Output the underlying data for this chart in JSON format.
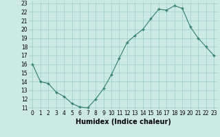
{
  "x": [
    0,
    1,
    2,
    3,
    4,
    5,
    6,
    7,
    8,
    9,
    10,
    11,
    12,
    13,
    14,
    15,
    16,
    17,
    18,
    19,
    20,
    21,
    22,
    23
  ],
  "y": [
    16,
    14,
    13.8,
    12.8,
    12.3,
    11.5,
    11.1,
    11.0,
    12.0,
    13.2,
    14.8,
    16.7,
    18.5,
    19.3,
    20.0,
    21.2,
    22.3,
    22.2,
    22.7,
    22.4,
    20.3,
    19.0,
    18.0,
    17.0
  ],
  "xlabel": "Humidex (Indice chaleur)",
  "xlim": [
    -0.5,
    23.5
  ],
  "ylim": [
    10.8,
    23.2
  ],
  "yticks": [
    11,
    12,
    13,
    14,
    15,
    16,
    17,
    18,
    19,
    20,
    21,
    22,
    23
  ],
  "xticks": [
    0,
    1,
    2,
    3,
    4,
    5,
    6,
    7,
    8,
    9,
    10,
    11,
    12,
    13,
    14,
    15,
    16,
    17,
    18,
    19,
    20,
    21,
    22,
    23
  ],
  "line_color": "#2e7d6e",
  "marker": "+",
  "bg_color": "#cce9e4",
  "grid_color": "#99cccc",
  "tick_fontsize": 5.5,
  "xlabel_fontsize": 7.0
}
